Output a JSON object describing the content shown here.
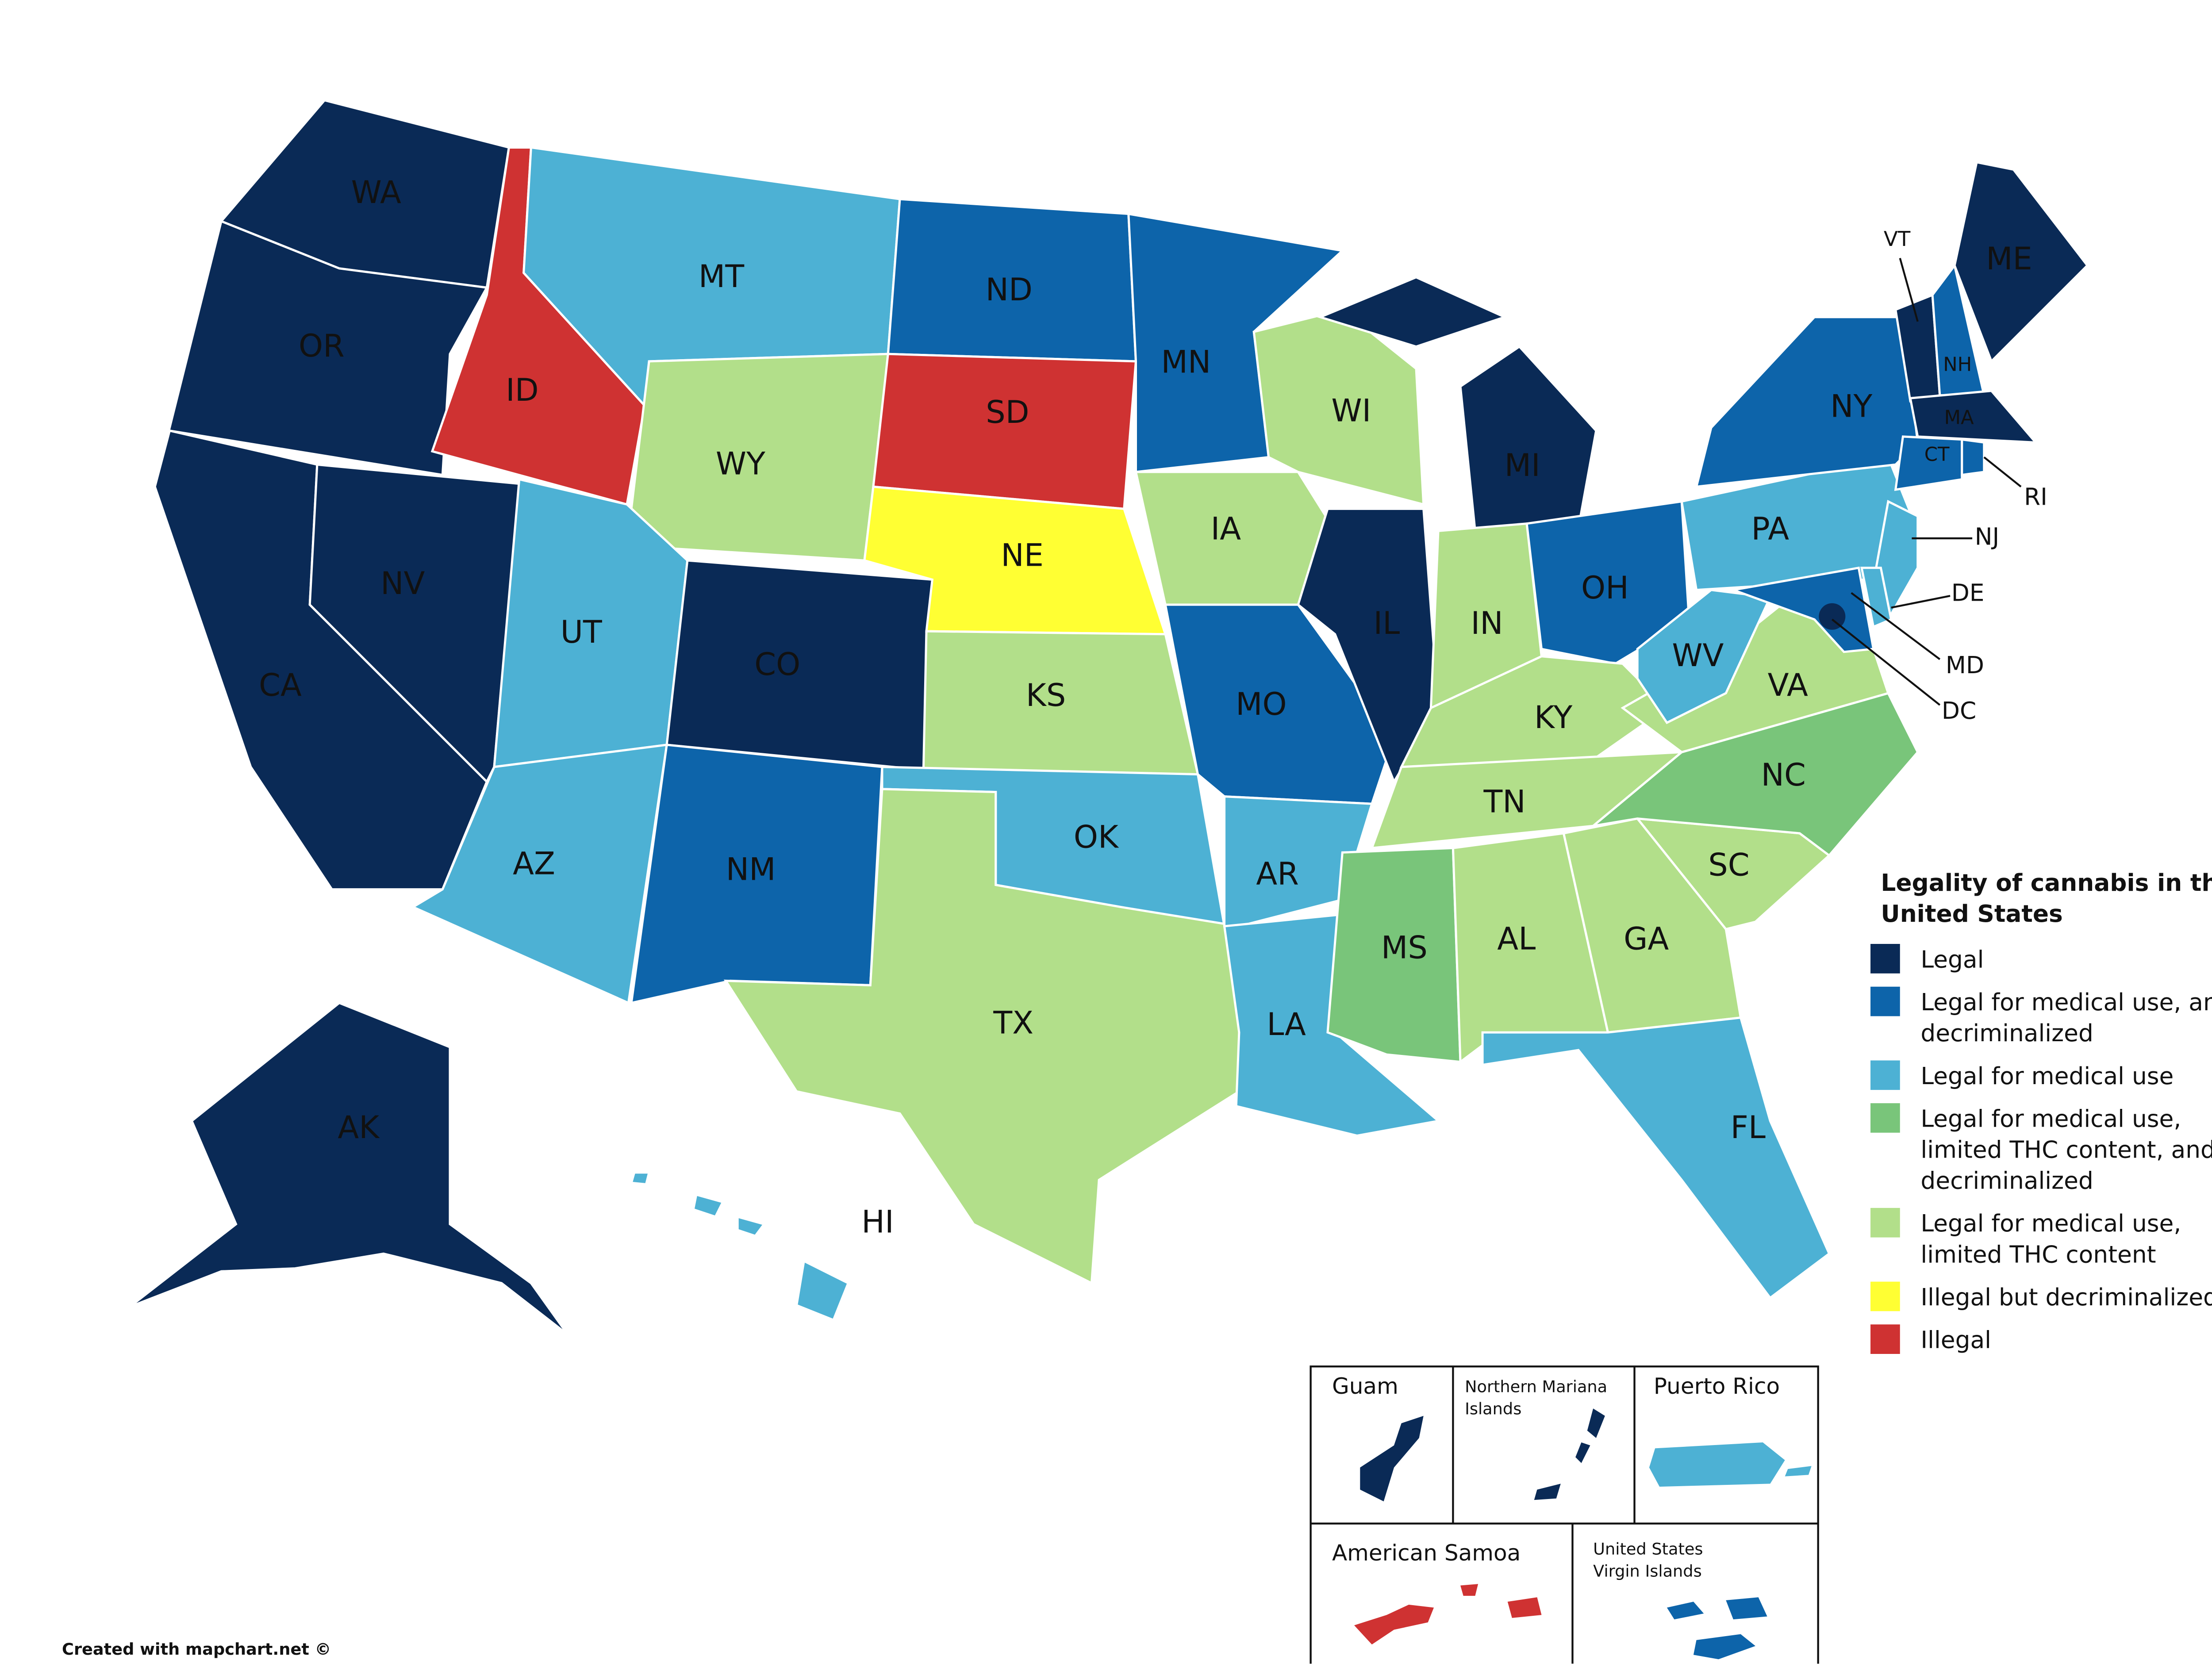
{
  "legend": {
    "title": "Legality of cannabis in the United States",
    "items": [
      {
        "label": "Legal",
        "color": "#0a2a56"
      },
      {
        "label": "Legal for medical use, and decriminalized",
        "color": "#0d64aa"
      },
      {
        "label": "Legal for medical use",
        "color": "#4db1d4"
      },
      {
        "label": "Legal for medical use, limited THC content, and decriminalized",
        "color": "#79c57a"
      },
      {
        "label": "Legal for medical use, limited THC content",
        "color": "#b2df8a"
      },
      {
        "label": "Illegal but decriminalized",
        "color": "#ffff33"
      },
      {
        "label": "Illegal",
        "color": "#cf3232"
      }
    ]
  },
  "states": [
    {
      "label": "WA",
      "color": "#0a2a56"
    },
    {
      "label": "OR",
      "color": "#0a2a56"
    },
    {
      "label": "CA",
      "color": "#0a2a56"
    },
    {
      "label": "NV",
      "color": "#0a2a56"
    },
    {
      "label": "ID",
      "color": "#cf3232"
    },
    {
      "label": "MT",
      "color": "#4db1d4"
    },
    {
      "label": "WY",
      "color": "#b2df8a"
    },
    {
      "label": "UT",
      "color": "#4db1d4"
    },
    {
      "label": "AZ",
      "color": "#4db1d4"
    },
    {
      "label": "CO",
      "color": "#0a2a56"
    },
    {
      "label": "NM",
      "color": "#0d64aa"
    },
    {
      "label": "ND",
      "color": "#0d64aa"
    },
    {
      "label": "SD",
      "color": "#cf3232"
    },
    {
      "label": "NE",
      "color": "#ffff33"
    },
    {
      "label": "KS",
      "color": "#b2df8a"
    },
    {
      "label": "OK",
      "color": "#4db1d4"
    },
    {
      "label": "TX",
      "color": "#b2df8a"
    },
    {
      "label": "MN",
      "color": "#0d64aa"
    },
    {
      "label": "IA",
      "color": "#b2df8a"
    },
    {
      "label": "MO",
      "color": "#0d64aa"
    },
    {
      "label": "AR",
      "color": "#4db1d4"
    },
    {
      "label": "LA",
      "color": "#4db1d4"
    },
    {
      "label": "WI",
      "color": "#b2df8a"
    },
    {
      "label": "IL",
      "color": "#0a2a56"
    },
    {
      "label": "MI",
      "color": "#0a2a56"
    },
    {
      "label": "IN",
      "color": "#b2df8a"
    },
    {
      "label": "OH",
      "color": "#0d64aa"
    },
    {
      "label": "KY",
      "color": "#b2df8a"
    },
    {
      "label": "TN",
      "color": "#b2df8a"
    },
    {
      "label": "MS",
      "color": "#79c57a"
    },
    {
      "label": "AL",
      "color": "#b2df8a"
    },
    {
      "label": "GA",
      "color": "#b2df8a"
    },
    {
      "label": "FL",
      "color": "#4db1d4"
    },
    {
      "label": "SC",
      "color": "#b2df8a"
    },
    {
      "label": "NC",
      "color": "#79c57a"
    },
    {
      "label": "VA",
      "color": "#b2df8a"
    },
    {
      "label": "WV",
      "color": "#4db1d4"
    },
    {
      "label": "PA",
      "color": "#4db1d4"
    },
    {
      "label": "NY",
      "color": "#0d64aa"
    },
    {
      "label": "NJ",
      "color": "#4db1d4"
    },
    {
      "label": "DE",
      "color": "#4db1d4"
    },
    {
      "label": "MD",
      "color": "#0d64aa"
    },
    {
      "label": "DC",
      "color": "#0a2a56"
    },
    {
      "label": "VT",
      "color": "#0a2a56"
    },
    {
      "label": "NH",
      "color": "#0d64aa"
    },
    {
      "label": "ME",
      "color": "#0a2a56"
    },
    {
      "label": "MA",
      "color": "#0a2a56"
    },
    {
      "label": "CT",
      "color": "#0d64aa"
    },
    {
      "label": "RI",
      "color": "#0d64aa"
    },
    {
      "label": "AK",
      "color": "#0a2a56"
    },
    {
      "label": "HI",
      "color": "#4db1d4"
    }
  ],
  "territories": [
    {
      "label": "Guam",
      "color": "#0a2a56"
    },
    {
      "label": "Northern Mariana Islands",
      "color": "#0a2a56"
    },
    {
      "label": "Puerto Rico",
      "color": "#4db1d4"
    },
    {
      "label": "American Samoa",
      "color": "#cf3232"
    },
    {
      "label": "United States Virgin Islands",
      "color": "#0d64aa"
    }
  ],
  "credit": "Created with mapchart.net ©"
}
